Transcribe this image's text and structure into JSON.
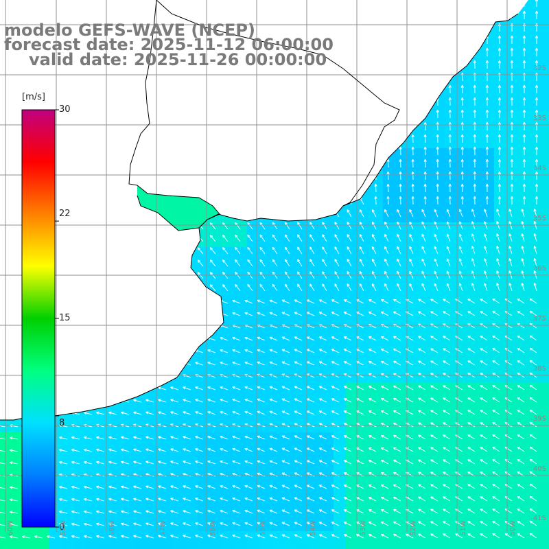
{
  "title": {
    "line1": "modelo GEFS-WAVE (NCEP)",
    "line2": "forecast date: 2025-11-12 06:00:00",
    "line3": "valid date: 2025-11-26 00:00:00"
  },
  "colorbar": {
    "unit": "[m/s]",
    "ticks": [
      "30",
      "22",
      "15",
      "8",
      "0"
    ],
    "min": 0,
    "max": 30,
    "colors": [
      "#0000ff",
      "#0080ff",
      "#00e0ff",
      "#00ff80",
      "#00d000",
      "#ffff00",
      "#ff8000",
      "#ff0000",
      "#c00080"
    ]
  },
  "lat_labels": [
    "32S",
    "33S",
    "34S",
    "35S",
    "36S",
    "37S",
    "38S",
    "39S",
    "40S",
    "41S"
  ],
  "lon_labels": [
    "60W",
    "59W",
    "58W",
    "57W",
    "56W",
    "55W",
    "54W",
    "53W",
    "52W",
    "51W",
    "50W"
  ],
  "colors": {
    "land": "#ffffff",
    "grid": "#909090",
    "coast": "#000000",
    "arrows": "#ffffff",
    "title": "#7a7a7a"
  }
}
